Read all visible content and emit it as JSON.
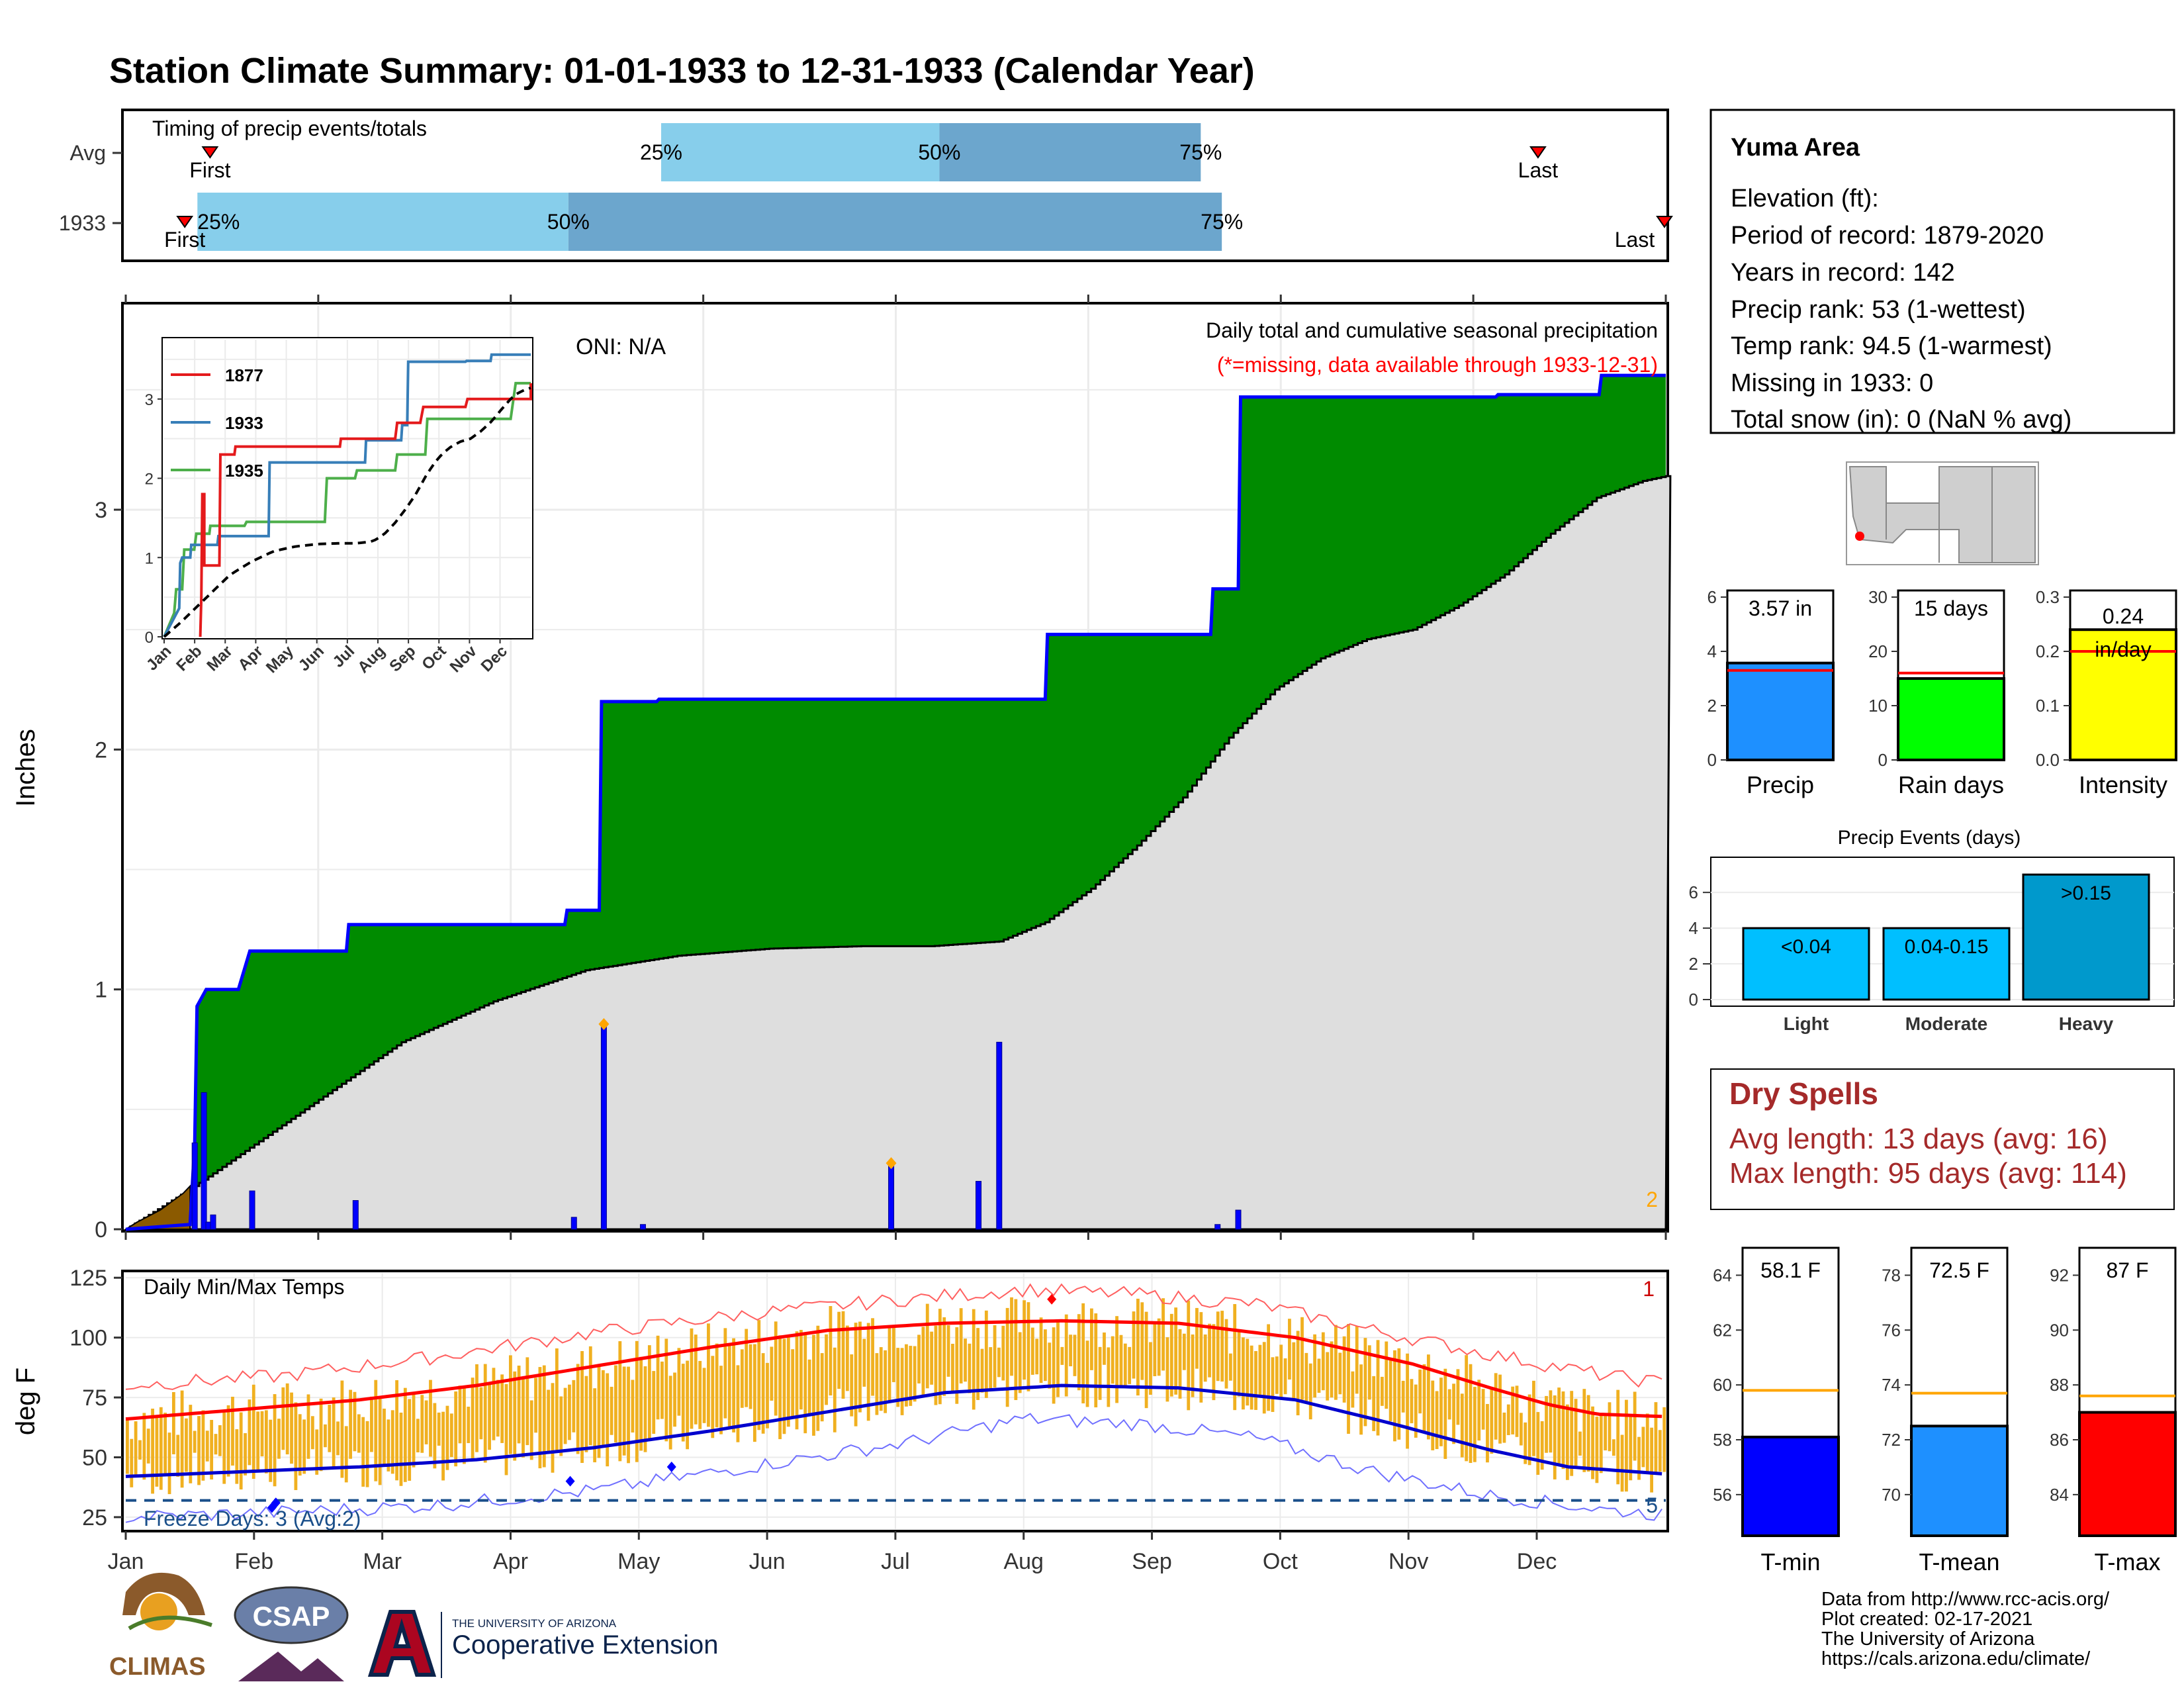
{
  "title": "Station Climate Summary: 01-01-1933 to 12-31-1933 (Calendar Year)",
  "colors": {
    "title": "#0b0b7a",
    "q_light": "#87ceeb",
    "q_dark": "#6ca6cd",
    "green_fill": "#008b00",
    "gray_fill": "#dedede",
    "brown_fill": "#8b5a00",
    "precip_line": "#0000ff",
    "tmax_line": "#ff0000",
    "tmin_line": "#0000cd",
    "temp_bars": "#f0b020",
    "dry_spell": "#a52a2a",
    "orange": "#ffa500"
  },
  "timing": {
    "title": "Timing of precip events/totals",
    "rows": [
      {
        "label": "Avg",
        "first_label": "First",
        "last_label": "Last",
        "q25": "25%",
        "q50": "50%",
        "q75": "75%",
        "first_day": 20,
        "last_day": 335,
        "q25_day": 127,
        "q50_day": 193,
        "q75_day": 255
      },
      {
        "label": "1933",
        "first_label": "First",
        "last_label": "Last",
        "q25": "25%",
        "q50": "50%",
        "q75": "75%",
        "first_day": 14,
        "last_day": 365,
        "q25_day": 17,
        "q50_day": 105,
        "q75_day": 260
      }
    ]
  },
  "station": {
    "name": "Yuma Area",
    "lines": [
      "Elevation (ft):",
      "Period of record: 1879-2020",
      "Years in record: 142",
      "Precip rank: 53 (1-wettest)",
      "Temp rank: 94.5 (1-warmest)",
      "Missing in 1933: 0",
      "Total snow (in): 0 (NaN % avg)"
    ]
  },
  "precip_panel": {
    "ylabel": "Inches",
    "oni": "ONI: N/A",
    "note_title": "Daily total and cumulative seasonal precipitation",
    "note_missing": "(*=missing, data available through 1933-12-31)",
    "corner_count": "2",
    "yticks": [
      "0",
      "1",
      "2",
      "3"
    ]
  },
  "inset": {
    "legend": [
      "1877",
      "1933",
      "1935"
    ],
    "yticks": [
      "0",
      "1",
      "2",
      "3"
    ],
    "months": [
      "Jan",
      "Feb",
      "Mar",
      "Apr",
      "May",
      "Jun",
      "Jul",
      "Aug",
      "Sep",
      "Oct",
      "Nov",
      "Dec"
    ]
  },
  "bar_stats": [
    {
      "label": "Precip",
      "value_text": "3.57 in",
      "value": 3.57,
      "avg": 3.3,
      "ymax": 6,
      "yticks": [
        "0",
        "2",
        "4",
        "6"
      ],
      "color": "#1e90ff"
    },
    {
      "label": "Rain days",
      "value_text": "15 days",
      "value": 15,
      "avg": 16,
      "ymax": 30,
      "yticks": [
        "0",
        "10",
        "20",
        "30"
      ],
      "color": "#00ff00"
    },
    {
      "label": "Intensity",
      "value_text": "0.24 in/day",
      "value": 0.24,
      "avg": 0.2,
      "ymax": 0.3,
      "yticks": [
        "0.0",
        "0.1",
        "0.2",
        "0.3"
      ],
      "color": "#ffff00"
    }
  ],
  "events": {
    "title": "Precip Events (days)",
    "yticks": [
      "0",
      "2",
      "4",
      "6"
    ],
    "bars": [
      {
        "category": "Light",
        "label": "<0.04",
        "value": 4
      },
      {
        "category": "Moderate",
        "label": "0.04-0.15",
        "value": 4
      },
      {
        "category": "Heavy",
        "label": ">0.15",
        "value": 7
      }
    ]
  },
  "dry_spells": {
    "title": "Dry Spells",
    "avg_line": "Avg length: 13 days (avg: 16)",
    "max_line": "Max length: 95 days (avg: 114)"
  },
  "temp_panel": {
    "ylabel": "deg F",
    "title": "Daily Min/Max Temps",
    "freeze": "Freeze Days: 3 (Avg:2)",
    "right_top": "1",
    "right_bottom": "5",
    "yticks": [
      "25",
      "50",
      "75",
      "100",
      "125"
    ],
    "months": [
      "Jan",
      "Feb",
      "Mar",
      "Apr",
      "May",
      "Jun",
      "Jul",
      "Aug",
      "Sep",
      "Oct",
      "Nov",
      "Dec"
    ]
  },
  "temp_stats": [
    {
      "label": "T-min",
      "value_text": "58.1 F",
      "value": 58.1,
      "avg": 59.8,
      "ymin": 54.5,
      "ymax": 65,
      "yticks": [
        "56",
        "58",
        "60",
        "62",
        "64"
      ],
      "color": "#0000ff"
    },
    {
      "label": "T-mean",
      "value_text": "72.5 F",
      "value": 72.5,
      "avg": 73.7,
      "ymin": 68.5,
      "ymax": 79,
      "yticks": [
        "70",
        "72",
        "74",
        "76",
        "78"
      ],
      "color": "#1e90ff"
    },
    {
      "label": "T-max",
      "value_text": "87 F",
      "value": 87.0,
      "avg": 87.6,
      "ymin": 82.5,
      "ymax": 93,
      "yticks": [
        "84",
        "86",
        "88",
        "90",
        "92"
      ],
      "color": "#ff0000"
    }
  ],
  "chart_data": {
    "type": "area",
    "title": "Station Climate Summary: 01-01-1933 to 12-31-1933 (Calendar Year)",
    "ylabel": "Inches",
    "ylim": [
      0,
      3.85
    ],
    "daily_precip": [
      {
        "day": 30,
        "value": 0.36
      },
      {
        "day": 34,
        "value": 0.57
      },
      {
        "day": 36,
        "value": 0.03
      },
      {
        "day": 38,
        "value": 0.06
      },
      {
        "day": 55,
        "value": 0.16
      },
      {
        "day": 100,
        "value": 0.12
      },
      {
        "day": 195,
        "value": 0.05
      },
      {
        "day": 208,
        "value": 0.85
      },
      {
        "day": 225,
        "value": 0.02
      },
      {
        "day": 333,
        "value": 0.27
      },
      {
        "day": 371,
        "value": 0.2
      },
      {
        "day": 380,
        "value": 0.78
      },
      {
        "day": 475,
        "value": 0.02
      },
      {
        "day": 484,
        "value": 0.08
      }
    ],
    "cumulative_1933": [
      [
        0,
        0
      ],
      [
        28,
        0.02
      ],
      [
        30,
        0.36
      ],
      [
        31,
        0.93
      ],
      [
        35,
        1.0
      ],
      [
        49,
        1.0
      ],
      [
        54,
        1.16
      ],
      [
        96,
        1.16
      ],
      [
        97,
        1.27
      ],
      [
        191,
        1.27
      ],
      [
        192,
        1.33
      ],
      [
        206,
        1.33
      ],
      [
        207,
        2.2
      ],
      [
        231,
        2.2
      ],
      [
        232,
        2.21
      ],
      [
        400,
        2.21
      ],
      [
        401,
        2.48
      ],
      [
        472,
        2.48
      ],
      [
        473,
        2.67
      ],
      [
        484,
        2.67
      ],
      [
        485,
        3.47
      ],
      [
        596,
        3.47
      ],
      [
        597,
        3.48
      ],
      [
        641,
        3.48
      ],
      [
        642,
        3.56
      ],
      [
        670,
        3.56
      ]
    ],
    "avg_cumulative": [
      [
        0,
        0
      ],
      [
        30,
        0.18
      ],
      [
        60,
        0.38
      ],
      [
        90,
        0.58
      ],
      [
        120,
        0.78
      ],
      [
        160,
        0.95
      ],
      [
        200,
        1.08
      ],
      [
        240,
        1.14
      ],
      [
        280,
        1.17
      ],
      [
        320,
        1.18
      ],
      [
        350,
        1.18
      ],
      [
        380,
        1.2
      ],
      [
        400,
        1.28
      ],
      [
        420,
        1.42
      ],
      [
        440,
        1.6
      ],
      [
        460,
        1.8
      ],
      [
        480,
        2.05
      ],
      [
        500,
        2.25
      ],
      [
        520,
        2.38
      ],
      [
        540,
        2.46
      ],
      [
        560,
        2.5
      ],
      [
        580,
        2.6
      ],
      [
        600,
        2.73
      ],
      [
        620,
        2.9
      ],
      [
        640,
        3.05
      ],
      [
        660,
        3.12
      ],
      [
        670,
        3.14
      ]
    ],
    "temp_ylim": [
      20,
      127
    ],
    "avg_tmax": [
      [
        0,
        66
      ],
      [
        60,
        70
      ],
      [
        120,
        74
      ],
      [
        180,
        80
      ],
      [
        240,
        88
      ],
      [
        300,
        96
      ],
      [
        360,
        103
      ],
      [
        420,
        106
      ],
      [
        480,
        107
      ],
      [
        540,
        106
      ],
      [
        600,
        100
      ],
      [
        660,
        89
      ],
      [
        700,
        79
      ],
      [
        730,
        72
      ],
      [
        755,
        68
      ],
      [
        790,
        67
      ]
    ],
    "avg_tmin": [
      [
        0,
        42
      ],
      [
        60,
        44
      ],
      [
        120,
        46
      ],
      [
        180,
        49
      ],
      [
        240,
        54
      ],
      [
        300,
        61
      ],
      [
        360,
        69
      ],
      [
        420,
        77
      ],
      [
        480,
        80
      ],
      [
        540,
        79
      ],
      [
        600,
        74
      ],
      [
        650,
        64
      ],
      [
        700,
        53
      ],
      [
        740,
        46
      ],
      [
        790,
        43
      ]
    ],
    "record_high": [
      [
        0,
        80
      ],
      [
        80,
        84
      ],
      [
        160,
        92
      ],
      [
        240,
        102
      ],
      [
        320,
        110
      ],
      [
        400,
        116
      ],
      [
        460,
        120
      ],
      [
        520,
        118
      ],
      [
        580,
        114
      ],
      [
        640,
        103
      ],
      [
        700,
        93
      ],
      [
        760,
        84
      ],
      [
        790,
        81
      ]
    ],
    "record_low": [
      [
        0,
        25
      ],
      [
        80,
        27
      ],
      [
        160,
        30
      ],
      [
        240,
        36
      ],
      [
        320,
        46
      ],
      [
        400,
        56
      ],
      [
        460,
        66
      ],
      [
        520,
        64
      ],
      [
        580,
        58
      ],
      [
        640,
        44
      ],
      [
        700,
        34
      ],
      [
        760,
        28
      ],
      [
        790,
        26
      ]
    ]
  }
}
